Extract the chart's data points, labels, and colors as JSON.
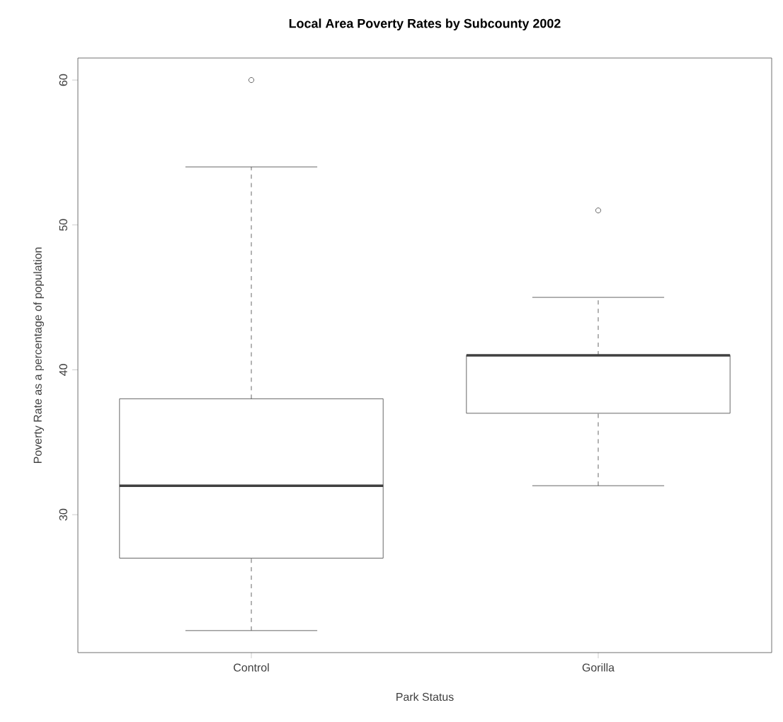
{
  "chart_data": {
    "type": "box",
    "title": "Local Area Poverty Rates by Subcounty 2002",
    "xlabel": "Park Status",
    "ylabel": "Poverty Rate as a percentage of population",
    "categories": [
      "Control",
      "Gorilla"
    ],
    "boxes": [
      {
        "low": 22,
        "q1": 27,
        "median": 32,
        "q3": 38,
        "high": 54,
        "outliers": [
          60
        ]
      },
      {
        "low": 32,
        "q1": 37,
        "median": 41,
        "q3": 41,
        "high": 45,
        "outliers": [
          51
        ]
      }
    ],
    "ylim": [
      20.48,
      61.52
    ],
    "yticks": [
      30,
      40,
      50,
      60
    ],
    "grid": false,
    "color": "#404040"
  }
}
